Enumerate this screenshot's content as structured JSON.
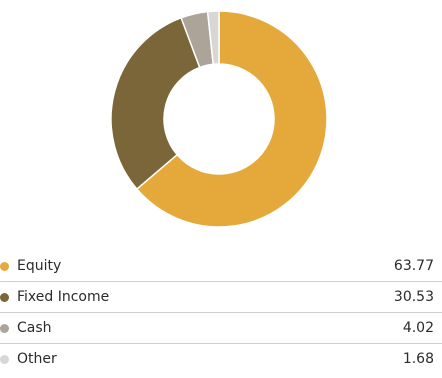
{
  "chart_data": {
    "type": "pie",
    "categories": [
      "Equity",
      "Fixed Income",
      "Cash",
      "Other"
    ],
    "values": [
      63.77,
      30.53,
      4.02,
      1.68
    ],
    "colors": [
      "#e5a93b",
      "#7a6638",
      "#aca399",
      "#d7d7d7"
    ],
    "title": "",
    "legend": "bottom"
  },
  "legend": {
    "items": [
      {
        "label": "Equity",
        "value": "63.77",
        "color": "#e5a93b"
      },
      {
        "label": "Fixed Income",
        "value": "30.53",
        "color": "#7a6638"
      },
      {
        "label": "Cash",
        "value": "4.02",
        "color": "#aca399"
      },
      {
        "label": "Other",
        "value": "1.68",
        "color": "#d7d7d7"
      }
    ]
  }
}
